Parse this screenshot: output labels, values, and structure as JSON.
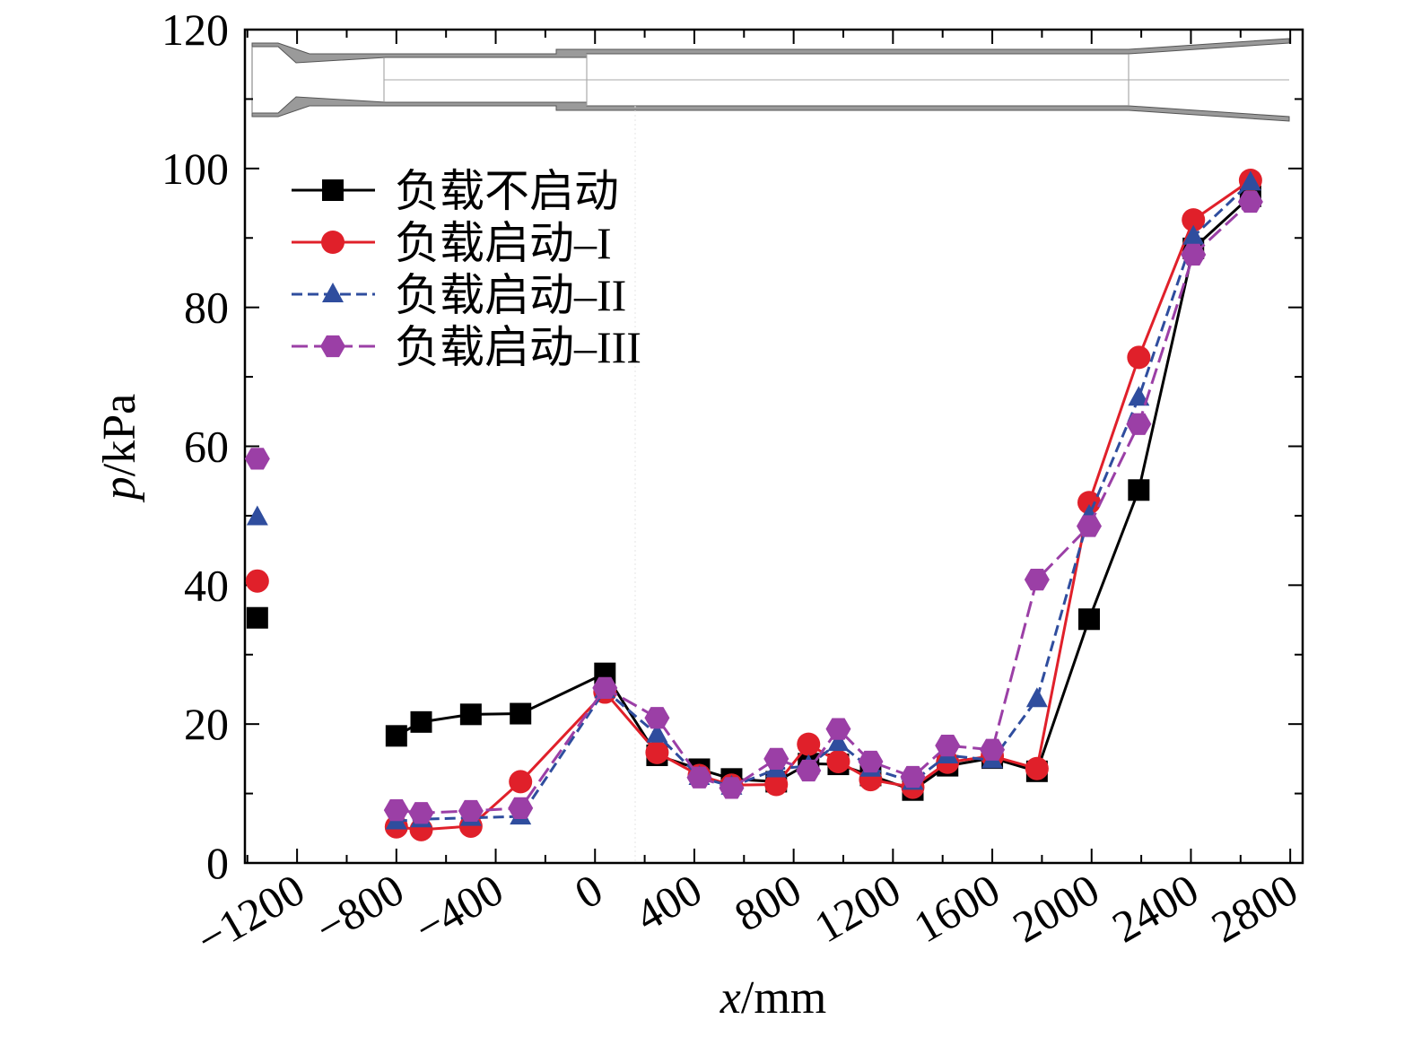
{
  "chart_data": {
    "type": "line",
    "xlabel_var": "x",
    "xlabel_unit": "/mm",
    "ylabel_var": "p",
    "ylabel_unit": "/kPa",
    "xlim": [
      -1410,
      2850
    ],
    "ylim": [
      0,
      120
    ],
    "x_ticks": [
      -1200,
      -800,
      -400,
      0,
      400,
      800,
      1200,
      1600,
      2000,
      2400,
      2800
    ],
    "x_tick_labels": [
      "−1200",
      "−800",
      "−400",
      "0",
      "400",
      "800",
      "1200",
      "1600",
      "2000",
      "2400",
      "2800"
    ],
    "y_ticks": [
      0,
      20,
      40,
      60,
      80,
      100,
      120
    ],
    "y_tick_labels": [
      "0",
      "20",
      "40",
      "60",
      "80",
      "100",
      "120"
    ],
    "legend_position": "upper-left",
    "inset": "nozzle/duct geometry schematic at top",
    "series": [
      {
        "name": "负载不启动",
        "color": "#000000",
        "marker": "square",
        "dash": "",
        "isolated": [
          {
            "x": -1360,
            "y": 35.3
          }
        ],
        "points": [
          {
            "x": -800,
            "y": 18.3
          },
          {
            "x": -700,
            "y": 20.3
          },
          {
            "x": -500,
            "y": 21.4
          },
          {
            "x": -300,
            "y": 21.5
          },
          {
            "x": 40,
            "y": 27.3
          },
          {
            "x": 250,
            "y": 15.5
          },
          {
            "x": 420,
            "y": 13.5
          },
          {
            "x": 550,
            "y": 12.1
          },
          {
            "x": 730,
            "y": 11.7
          },
          {
            "x": 860,
            "y": 14.3
          },
          {
            "x": 980,
            "y": 14.2
          },
          {
            "x": 1110,
            "y": 12.6
          },
          {
            "x": 1280,
            "y": 10.5
          },
          {
            "x": 1420,
            "y": 14.0
          },
          {
            "x": 1600,
            "y": 15.1
          },
          {
            "x": 1780,
            "y": 13.2
          },
          {
            "x": 1990,
            "y": 35.1
          },
          {
            "x": 2190,
            "y": 53.7
          },
          {
            "x": 2410,
            "y": 88.5
          },
          {
            "x": 2640,
            "y": 96.0
          }
        ]
      },
      {
        "name": "负载启动–I",
        "color": "#e0202a",
        "marker": "circle",
        "dash": "",
        "isolated": [
          {
            "x": -1360,
            "y": 40.6
          }
        ],
        "points": [
          {
            "x": -800,
            "y": 5.2
          },
          {
            "x": -700,
            "y": 4.8
          },
          {
            "x": -500,
            "y": 5.3
          },
          {
            "x": -300,
            "y": 11.7
          },
          {
            "x": 40,
            "y": 24.6
          },
          {
            "x": 250,
            "y": 15.9
          },
          {
            "x": 420,
            "y": 12.6
          },
          {
            "x": 550,
            "y": 11.2
          },
          {
            "x": 730,
            "y": 11.3
          },
          {
            "x": 860,
            "y": 17.1
          },
          {
            "x": 980,
            "y": 14.6
          },
          {
            "x": 1110,
            "y": 12.0
          },
          {
            "x": 1280,
            "y": 10.9
          },
          {
            "x": 1420,
            "y": 14.5
          },
          {
            "x": 1600,
            "y": 15.4
          },
          {
            "x": 1780,
            "y": 13.6
          },
          {
            "x": 1990,
            "y": 51.9
          },
          {
            "x": 2190,
            "y": 72.8
          },
          {
            "x": 2410,
            "y": 92.6
          },
          {
            "x": 2640,
            "y": 98.3
          }
        ]
      },
      {
        "name": "负载启动–II",
        "color": "#2f4d9e",
        "marker": "triangle",
        "dash": "12,6",
        "isolated": [
          {
            "x": -1360,
            "y": 49.8
          }
        ],
        "points": [
          {
            "x": -800,
            "y": 6.0
          },
          {
            "x": -700,
            "y": 6.3
          },
          {
            "x": -500,
            "y": 6.5
          },
          {
            "x": -300,
            "y": 6.7
          },
          {
            "x": 40,
            "y": 24.9
          },
          {
            "x": 250,
            "y": 18.5
          },
          {
            "x": 420,
            "y": 12.4
          },
          {
            "x": 550,
            "y": 11.0
          },
          {
            "x": 730,
            "y": 13.5
          },
          {
            "x": 860,
            "y": 14.0
          },
          {
            "x": 980,
            "y": 17.3
          },
          {
            "x": 1110,
            "y": 13.6
          },
          {
            "x": 1280,
            "y": 11.7
          },
          {
            "x": 1420,
            "y": 15.5
          },
          {
            "x": 1600,
            "y": 14.8
          },
          {
            "x": 1780,
            "y": 23.6
          },
          {
            "x": 1990,
            "y": 50.0
          },
          {
            "x": 2190,
            "y": 67.0
          },
          {
            "x": 2410,
            "y": 90.2
          },
          {
            "x": 2640,
            "y": 98.0
          }
        ]
      },
      {
        "name": "负载启动–III",
        "color": "#9b3fa6",
        "marker": "hexagon",
        "dash": "18,7",
        "isolated": [
          {
            "x": -1360,
            "y": 58.2
          }
        ],
        "points": [
          {
            "x": -800,
            "y": 7.6
          },
          {
            "x": -700,
            "y": 7.2
          },
          {
            "x": -500,
            "y": 7.5
          },
          {
            "x": -300,
            "y": 7.9
          },
          {
            "x": 40,
            "y": 25.2
          },
          {
            "x": 250,
            "y": 20.9
          },
          {
            "x": 420,
            "y": 12.3
          },
          {
            "x": 550,
            "y": 10.8
          },
          {
            "x": 730,
            "y": 15.0
          },
          {
            "x": 860,
            "y": 13.3
          },
          {
            "x": 980,
            "y": 19.3
          },
          {
            "x": 1110,
            "y": 14.6
          },
          {
            "x": 1280,
            "y": 12.4
          },
          {
            "x": 1420,
            "y": 16.9
          },
          {
            "x": 1600,
            "y": 16.3
          },
          {
            "x": 1780,
            "y": 40.8
          },
          {
            "x": 1990,
            "y": 48.5
          },
          {
            "x": 2190,
            "y": 63.2
          },
          {
            "x": 2410,
            "y": 87.6
          },
          {
            "x": 2640,
            "y": 95.2
          }
        ]
      }
    ]
  }
}
